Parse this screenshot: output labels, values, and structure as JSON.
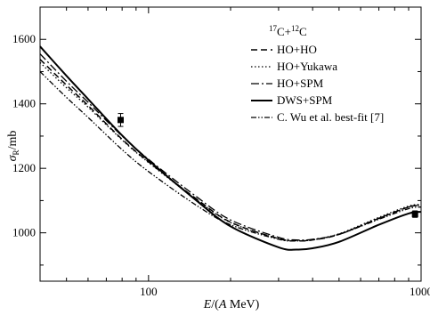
{
  "chart_data": {
    "type": "line",
    "title": "",
    "legend_title": {
      "sup1": "17",
      "el1": "C+",
      "sup2": "12",
      "el2": "C"
    },
    "xlabel": {
      "var": "E",
      "unit_pre": "/(",
      "unit_var": "A",
      "unit_post": " MeV)"
    },
    "ylabel": {
      "sym": "σ",
      "sub": "R",
      "unit": "/mb"
    },
    "xscale": "log",
    "xlim": [
      40,
      1000
    ],
    "ylim": [
      850,
      1700
    ],
    "x_ticks": [
      100,
      1000
    ],
    "x_tick_labels": [
      "100",
      "1000"
    ],
    "y_ticks": [
      1000,
      1200,
      1400,
      1600
    ],
    "y_tick_labels": [
      "1000",
      "1200",
      "1400",
      "1600"
    ],
    "grid": false,
    "legend_position": "top-right",
    "series": [
      {
        "name": "HO+HO",
        "dash": "7,4",
        "width": 1.5,
        "x": [
          40,
          50,
          60,
          80,
          100,
          150,
          200,
          300,
          350,
          400,
          500,
          700,
          900,
          1000
        ],
        "y": [
          1538,
          1458,
          1395,
          1290,
          1220,
          1105,
          1033,
          982,
          975,
          978,
          995,
          1045,
          1080,
          1085
        ]
      },
      {
        "name": "HO+Yukawa",
        "dash": "1.5,2.5",
        "width": 1.3,
        "x": [
          40,
          50,
          60,
          80,
          100,
          150,
          200,
          300,
          350,
          400,
          500,
          700,
          900,
          1000
        ],
        "y": [
          1528,
          1450,
          1390,
          1288,
          1218,
          1103,
          1032,
          982,
          976,
          979,
          997,
          1048,
          1083,
          1088
        ]
      },
      {
        "name": "HO+SPM",
        "dash": "9,3,2,3",
        "width": 1.3,
        "x": [
          40,
          50,
          60,
          80,
          100,
          150,
          200,
          300,
          350,
          400,
          500,
          700,
          900,
          1000
        ],
        "y": [
          1555,
          1470,
          1405,
          1300,
          1228,
          1112,
          1040,
          986,
          978,
          980,
          996,
          1045,
          1080,
          1086
        ]
      },
      {
        "name": "DWS+SPM",
        "dash": "",
        "width": 2.0,
        "x": [
          40,
          50,
          60,
          80,
          100,
          150,
          200,
          300,
          350,
          400,
          500,
          700,
          900,
          1000
        ],
        "y": [
          1578,
          1487,
          1415,
          1302,
          1225,
          1100,
          1020,
          955,
          948,
          952,
          972,
          1025,
          1060,
          1065
        ]
      },
      {
        "name": "C. Wu et al. best-fit [7]",
        "dash": "6,2,1.5,2,1.5,2",
        "width": 1.3,
        "x": [
          40,
          50,
          60,
          80,
          100,
          150,
          200,
          300,
          350,
          400,
          500,
          700,
          900,
          1000
        ],
        "y": [
          1500,
          1420,
          1358,
          1258,
          1190,
          1085,
          1025,
          980,
          975,
          978,
          995,
          1042,
          1075,
          1080
        ]
      }
    ],
    "data_points": [
      {
        "x": 79,
        "y": 1350,
        "err": 20
      },
      {
        "x": 950,
        "y": 1058,
        "err": 10
      }
    ]
  }
}
